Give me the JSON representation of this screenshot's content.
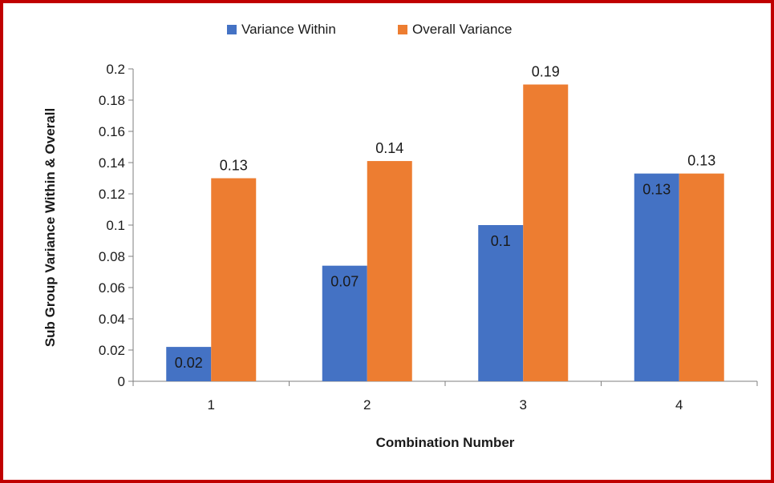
{
  "chart_data": {
    "type": "bar",
    "categories": [
      "1",
      "2",
      "3",
      "4"
    ],
    "series": [
      {
        "name": "Variance Within",
        "color": "#4472c4",
        "values": [
          0.022,
          0.074,
          0.1,
          0.133
        ],
        "labels": [
          "0.02",
          "0.07",
          "0.1",
          "0.13"
        ]
      },
      {
        "name": "Overall Variance",
        "color": "#ed7d31",
        "values": [
          0.13,
          0.141,
          0.19,
          0.133
        ],
        "labels": [
          "0.13",
          "0.14",
          "0.19",
          "0.13"
        ]
      }
    ],
    "xlabel": "Combination Number",
    "ylabel": "Sub Group Variance Within & Overall",
    "ylim": [
      0,
      0.2
    ],
    "yticks": [
      "0",
      "0.02",
      "0.04",
      "0.06",
      "0.08",
      "0.1",
      "0.12",
      "0.14",
      "0.16",
      "0.18",
      "0.2"
    ],
    "grid": false,
    "legend_position": "top",
    "border_color": "#c00000"
  }
}
